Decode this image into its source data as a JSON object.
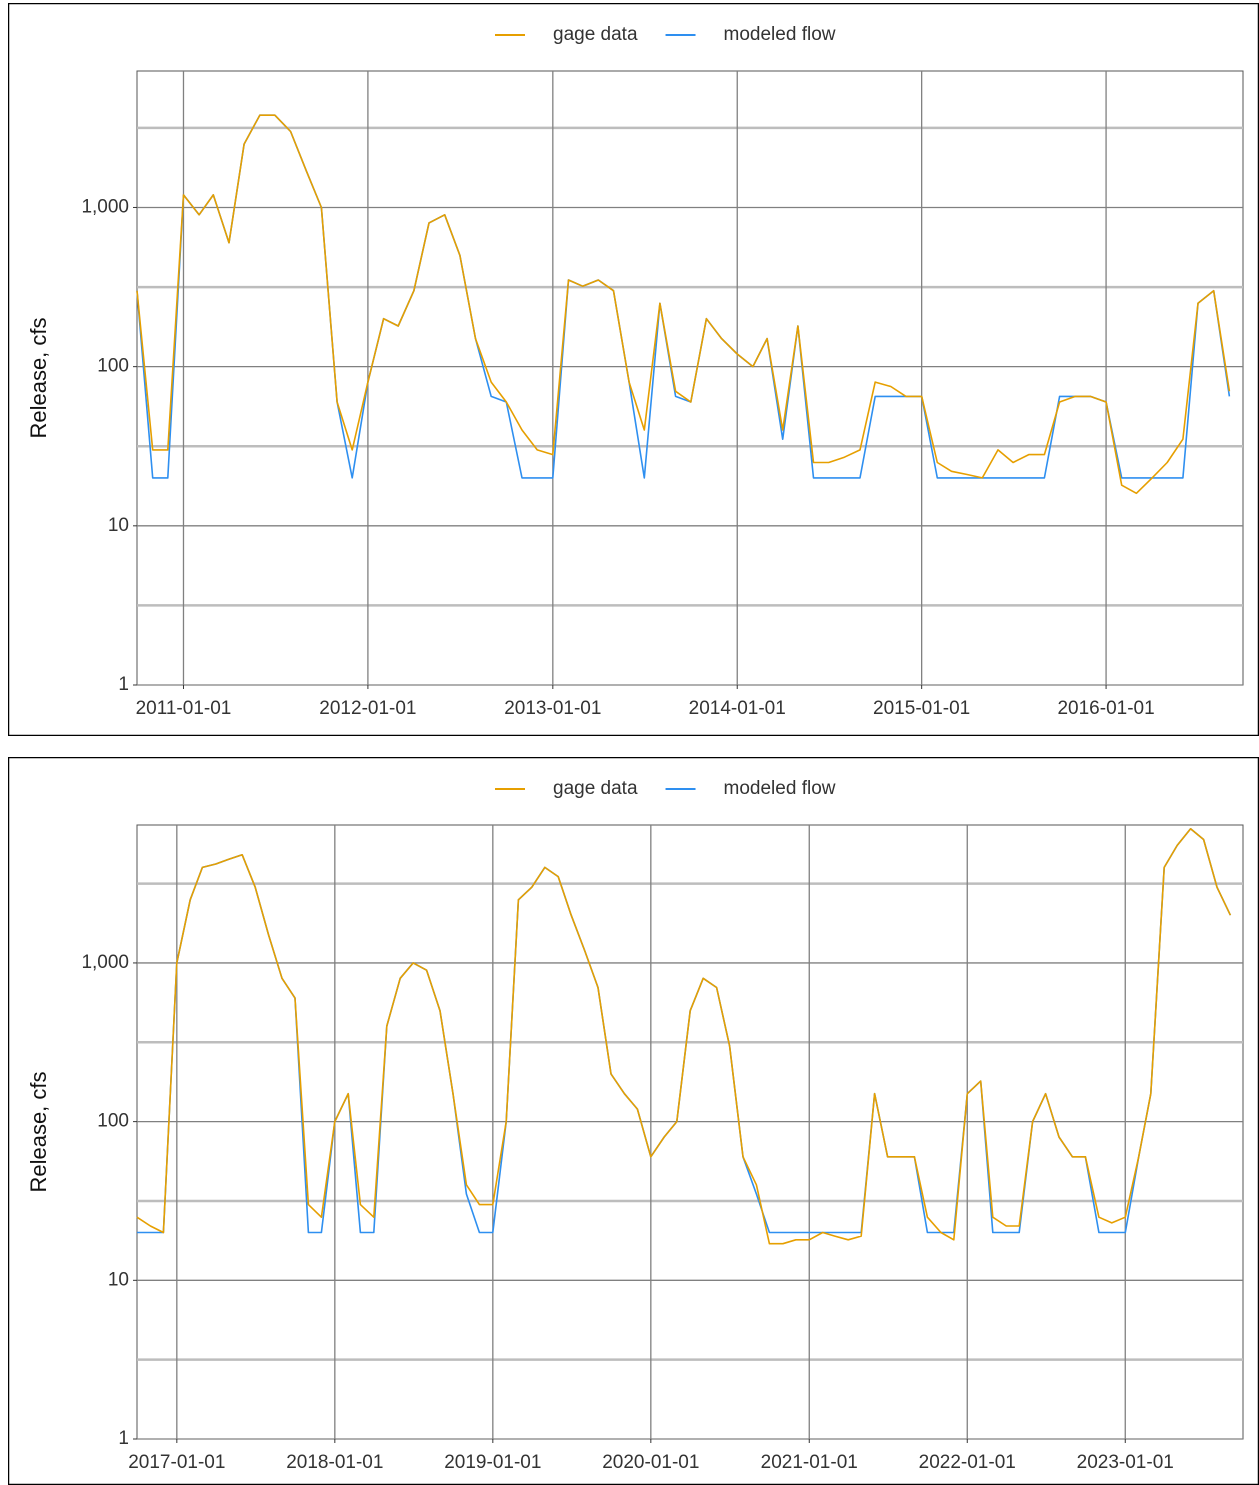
{
  "chart_data": [
    {
      "type": "line",
      "y_label": "Release, cfs",
      "log_y": true,
      "grid": true,
      "legend": "top",
      "xlim": [
        "2010-10-01",
        "2016-09-28"
      ],
      "ylim": [
        1,
        7200
      ],
      "yticks": [
        1,
        10,
        100,
        {
          "value": 1000,
          "label": "1,000"
        }
      ],
      "yminor": [
        3.162,
        31.62,
        316.2,
        3162
      ],
      "xticks": [
        "2011-01-01",
        "2012-01-01",
        "2013-01-01",
        "2014-01-01",
        "2015-01-01",
        "2016-01-01"
      ],
      "x": [
        "2010-10-01",
        "2010-11-01",
        "2010-12-01",
        "2011-01-01",
        "2011-02-01",
        "2011-03-01",
        "2011-04-01",
        "2011-05-01",
        "2011-06-01",
        "2011-07-01",
        "2011-08-01",
        "2011-09-01",
        "2011-10-01",
        "2011-11-01",
        "2011-12-01",
        "2012-01-01",
        "2012-02-01",
        "2012-03-01",
        "2012-04-01",
        "2012-05-01",
        "2012-06-01",
        "2012-07-01",
        "2012-08-01",
        "2012-09-01",
        "2012-10-01",
        "2012-11-01",
        "2012-12-01",
        "2013-01-01",
        "2013-02-01",
        "2013-03-01",
        "2013-04-01",
        "2013-05-01",
        "2013-06-01",
        "2013-07-01",
        "2013-08-01",
        "2013-09-01",
        "2013-10-01",
        "2013-11-01",
        "2013-12-01",
        "2014-01-01",
        "2014-02-01",
        "2014-03-01",
        "2014-04-01",
        "2014-05-01",
        "2014-06-01",
        "2014-07-01",
        "2014-08-01",
        "2014-09-01",
        "2014-10-01",
        "2014-11-01",
        "2014-12-01",
        "2015-01-01",
        "2015-02-01",
        "2015-03-01",
        "2015-04-01",
        "2015-05-01",
        "2015-06-01",
        "2015-07-01",
        "2015-08-01",
        "2015-09-01",
        "2015-10-01",
        "2015-11-01",
        "2015-12-01",
        "2016-01-01",
        "2016-02-01",
        "2016-03-01",
        "2016-04-01",
        "2016-05-01",
        "2016-06-01",
        "2016-07-01",
        "2016-08-01",
        "2016-09-01"
      ],
      "series": [
        {
          "name": "gage data",
          "color": "#e69f00",
          "values": [
            300,
            30,
            30,
            1200,
            900,
            1200,
            600,
            2500,
            3800,
            3800,
            3000,
            1700,
            1000,
            60,
            30,
            80,
            200,
            180,
            300,
            800,
            900,
            500,
            150,
            80,
            60,
            40,
            30,
            28,
            350,
            320,
            350,
            300,
            80,
            40,
            250,
            70,
            60,
            200,
            150,
            120,
            100,
            150,
            40,
            180,
            25,
            25,
            27,
            30,
            80,
            75,
            65,
            65,
            25,
            22,
            21,
            20,
            30,
            25,
            28,
            28,
            60,
            65,
            65,
            60,
            18,
            16,
            20,
            25,
            35,
            250,
            300,
            70
          ]
        },
        {
          "name": "modeled flow",
          "color": "#2e8ff0",
          "values": [
            300,
            20,
            20,
            1200,
            900,
            1200,
            600,
            2500,
            3800,
            3800,
            3000,
            1700,
            1000,
            60,
            20,
            80,
            200,
            180,
            300,
            800,
            900,
            500,
            150,
            65,
            60,
            20,
            20,
            20,
            350,
            320,
            350,
            300,
            80,
            20,
            250,
            65,
            60,
            200,
            150,
            120,
            100,
            150,
            35,
            180,
            20,
            20,
            20,
            20,
            65,
            65,
            65,
            65,
            20,
            20,
            20,
            20,
            20,
            20,
            20,
            20,
            65,
            65,
            65,
            60,
            20,
            20,
            20,
            20,
            20,
            250,
            300,
            65
          ]
        }
      ]
    },
    {
      "type": "line",
      "y_label": "Release, cfs",
      "log_y": true,
      "grid": true,
      "legend": "top",
      "xlim": [
        "2016-10-01",
        "2023-09-30"
      ],
      "ylim": [
        1,
        7400
      ],
      "yticks": [
        1,
        10,
        100,
        {
          "value": 1000,
          "label": "1,000"
        }
      ],
      "yminor": [
        3.162,
        31.62,
        316.2,
        3162
      ],
      "xticks": [
        "2017-01-01",
        "2018-01-01",
        "2019-01-01",
        "2020-01-01",
        "2021-01-01",
        "2022-01-01",
        "2023-01-01"
      ],
      "x": [
        "2016-10-01",
        "2016-11-01",
        "2016-12-01",
        "2017-01-01",
        "2017-02-01",
        "2017-03-01",
        "2017-04-01",
        "2017-05-01",
        "2017-06-01",
        "2017-07-01",
        "2017-08-01",
        "2017-09-01",
        "2017-10-01",
        "2017-11-01",
        "2017-12-01",
        "2018-01-01",
        "2018-02-01",
        "2018-03-01",
        "2018-04-01",
        "2018-05-01",
        "2018-06-01",
        "2018-07-01",
        "2018-08-01",
        "2018-09-01",
        "2018-10-01",
        "2018-11-01",
        "2018-12-01",
        "2019-01-01",
        "2019-02-01",
        "2019-03-01",
        "2019-04-01",
        "2019-05-01",
        "2019-06-01",
        "2019-07-01",
        "2019-08-01",
        "2019-09-01",
        "2019-10-01",
        "2019-11-01",
        "2019-12-01",
        "2020-01-01",
        "2020-02-01",
        "2020-03-01",
        "2020-04-01",
        "2020-05-01",
        "2020-06-01",
        "2020-07-01",
        "2020-08-01",
        "2020-09-01",
        "2020-10-01",
        "2020-11-01",
        "2020-12-01",
        "2021-01-01",
        "2021-02-01",
        "2021-03-01",
        "2021-04-01",
        "2021-05-01",
        "2021-06-01",
        "2021-07-01",
        "2021-08-01",
        "2021-09-01",
        "2021-10-01",
        "2021-11-01",
        "2021-12-01",
        "2022-01-01",
        "2022-02-01",
        "2022-03-01",
        "2022-04-01",
        "2022-05-01",
        "2022-06-01",
        "2022-07-01",
        "2022-08-01",
        "2022-09-01",
        "2022-10-01",
        "2022-11-01",
        "2022-12-01",
        "2023-01-01",
        "2023-02-01",
        "2023-03-01",
        "2023-04-01",
        "2023-05-01",
        "2023-06-01",
        "2023-07-01",
        "2023-08-01",
        "2023-09-01"
      ],
      "series": [
        {
          "name": "gage data",
          "color": "#e69f00",
          "values": [
            25,
            22,
            20,
            1000,
            2500,
            4000,
            4200,
            4500,
            4800,
            3000,
            1500,
            800,
            600,
            30,
            25,
            100,
            150,
            30,
            25,
            400,
            800,
            1000,
            900,
            500,
            150,
            40,
            30,
            30,
            100,
            2500,
            3000,
            4000,
            3500,
            2000,
            1200,
            700,
            200,
            150,
            120,
            60,
            80,
            100,
            500,
            800,
            700,
            300,
            60,
            40,
            17,
            17,
            18,
            18,
            20,
            19,
            18,
            19,
            150,
            60,
            60,
            60,
            25,
            20,
            18,
            150,
            180,
            25,
            22,
            22,
            100,
            150,
            80,
            60,
            60,
            25,
            23,
            25,
            60,
            150,
            4000,
            5500,
            7000,
            6000,
            3000,
            2000
          ]
        },
        {
          "name": "modeled flow",
          "color": "#2e8ff0",
          "values": [
            20,
            20,
            20,
            1000,
            2500,
            4000,
            4200,
            4500,
            4800,
            3000,
            1500,
            800,
            600,
            20,
            20,
            100,
            150,
            20,
            20,
            400,
            800,
            1000,
            900,
            500,
            150,
            35,
            20,
            20,
            100,
            2500,
            3000,
            4000,
            3500,
            2000,
            1200,
            700,
            200,
            150,
            120,
            60,
            80,
            100,
            500,
            800,
            700,
            300,
            60,
            35,
            20,
            20,
            20,
            20,
            20,
            20,
            20,
            20,
            150,
            60,
            60,
            60,
            20,
            20,
            20,
            150,
            180,
            20,
            20,
            20,
            100,
            150,
            80,
            60,
            60,
            20,
            20,
            20,
            60,
            150,
            4000,
            5500,
            7000,
            6000,
            3000,
            2000
          ]
        }
      ]
    }
  ]
}
